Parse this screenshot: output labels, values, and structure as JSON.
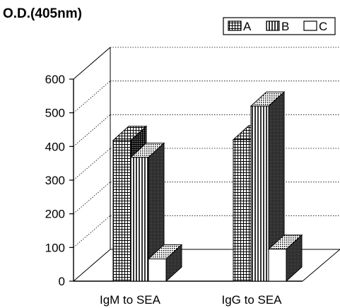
{
  "chart_data": {
    "type": "bar",
    "ylabel": "O.D.(405nm)",
    "ylim": [
      0,
      600
    ],
    "yticks": [
      "0",
      "100",
      "200",
      "300",
      "400",
      "500",
      "600"
    ],
    "categories": [
      "IgM to SEA",
      "IgG to SEA"
    ],
    "series": [
      {
        "name": "A",
        "values": [
          418,
          420
        ],
        "pattern": "grid"
      },
      {
        "name": "B",
        "values": [
          368,
          520
        ],
        "pattern": "vertical"
      },
      {
        "name": "C",
        "values": [
          66,
          95
        ],
        "pattern": "empty"
      }
    ],
    "legend_position": "top-right",
    "grid": true
  }
}
